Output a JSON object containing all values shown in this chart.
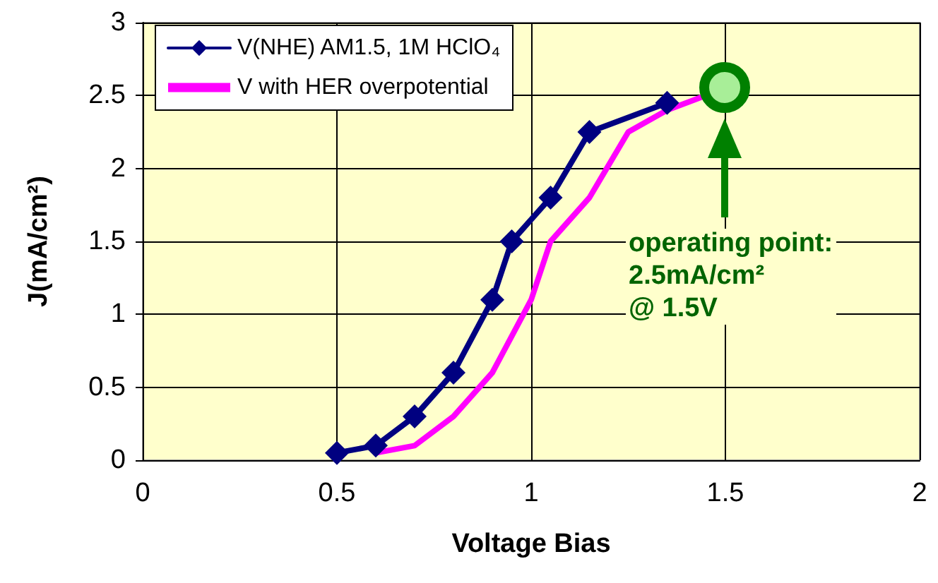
{
  "chart_data": {
    "type": "line",
    "xlabel": "Voltage Bias",
    "ylabel": "J(mA/cm²)",
    "xlim": [
      0,
      2
    ],
    "xticks": [
      0,
      0.5,
      1,
      1.5,
      2
    ],
    "ylim": [
      0,
      3
    ],
    "yticks": [
      0,
      0.5,
      1,
      1.5,
      2,
      2.5,
      3
    ],
    "grid": true,
    "legend": "top left",
    "series": [
      {
        "name": "V(NHE) AM1.5, 1M HClO₄",
        "color": "#000080",
        "marker": "diamond",
        "x": [
          0.5,
          0.6,
          0.7,
          0.8,
          0.9,
          0.95,
          1.05,
          1.15,
          1.35
        ],
        "values": [
          0.05,
          0.1,
          0.3,
          0.6,
          1.1,
          1.5,
          1.8,
          2.25,
          2.45
        ]
      },
      {
        "name": "V with HER overpotential",
        "color": "#ff00ff",
        "marker": "none",
        "x": [
          0.6,
          0.7,
          0.8,
          0.9,
          1.0,
          1.05,
          1.15,
          1.25,
          1.35,
          1.45
        ],
        "values": [
          0.05,
          0.1,
          0.3,
          0.6,
          1.1,
          1.5,
          1.8,
          2.25,
          2.4,
          2.5
        ]
      }
    ],
    "annotations": [
      "operating point:\n2.5mA/cm²\n@ 1.5V"
    ]
  }
}
